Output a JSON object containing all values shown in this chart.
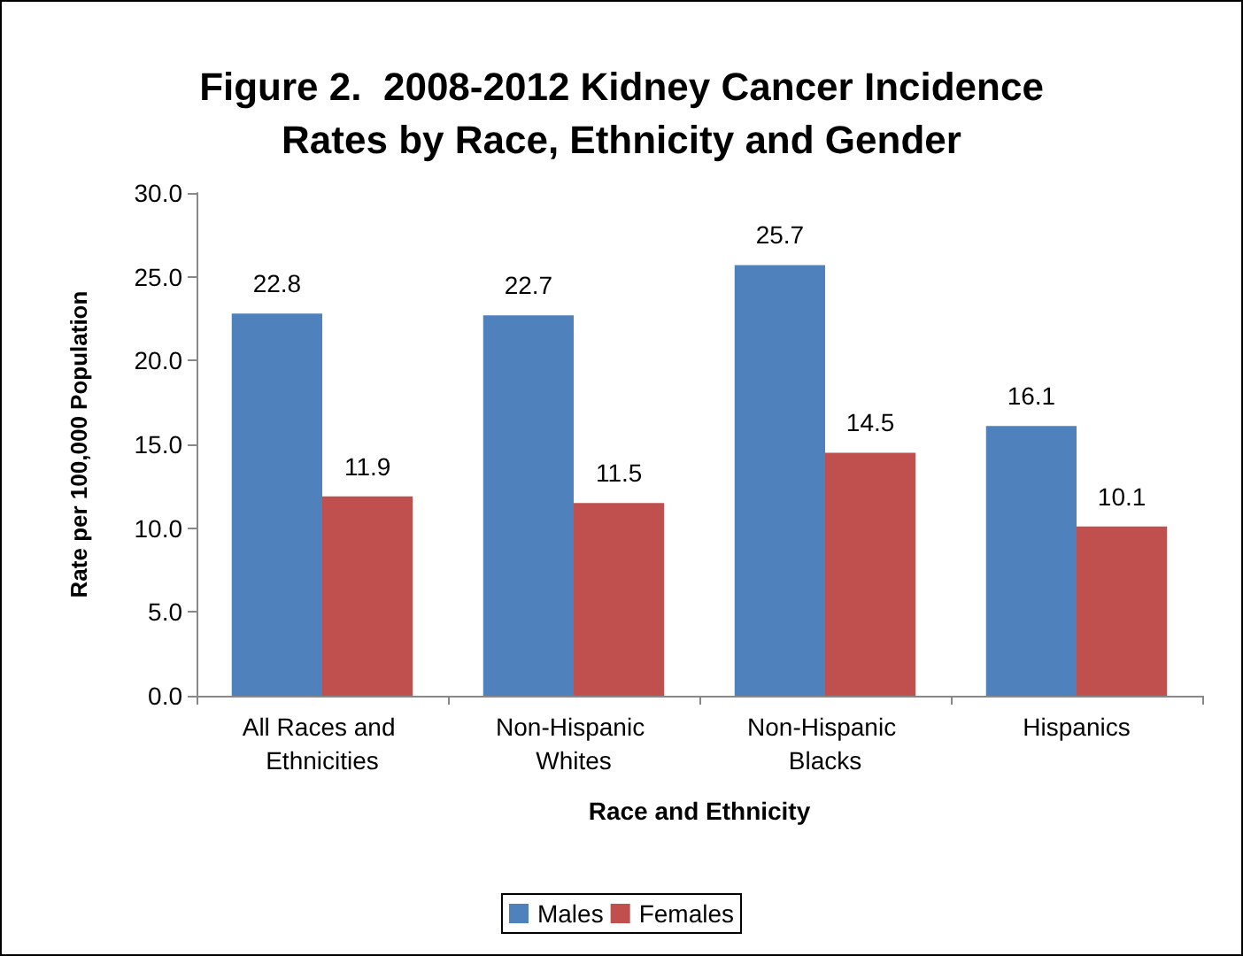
{
  "chart_data": {
    "type": "bar",
    "title": "Figure 2.  2008-2012 Kidney Cancer Incidence\nRates by Race, Ethnicity and Gender",
    "xlabel": "Race and Ethnicity",
    "ylabel": "Rate per 100,000 Population",
    "categories": [
      "All Races and Ethnicities",
      "Non-Hispanic Whites",
      "Non-Hispanic Blacks",
      "Hispanics"
    ],
    "series": [
      {
        "name": "Males",
        "color": "#4f81bd",
        "values": [
          22.8,
          22.7,
          25.7,
          16.1
        ]
      },
      {
        "name": "Females",
        "color": "#c0504d",
        "values": [
          11.9,
          11.5,
          14.5,
          10.1
        ]
      }
    ],
    "ylim": [
      0,
      30
    ],
    "yticks": [
      {
        "value": 0,
        "label": "0.0"
      },
      {
        "value": 5,
        "label": "5.0"
      },
      {
        "value": 10,
        "label": "10.0"
      },
      {
        "value": 15,
        "label": "15.0"
      },
      {
        "value": 20,
        "label": "20.0"
      },
      {
        "value": 25,
        "label": "25.0"
      },
      {
        "value": 30,
        "label": "30.0"
      }
    ],
    "data_labels": true,
    "grid": false,
    "legend": "bottom"
  }
}
